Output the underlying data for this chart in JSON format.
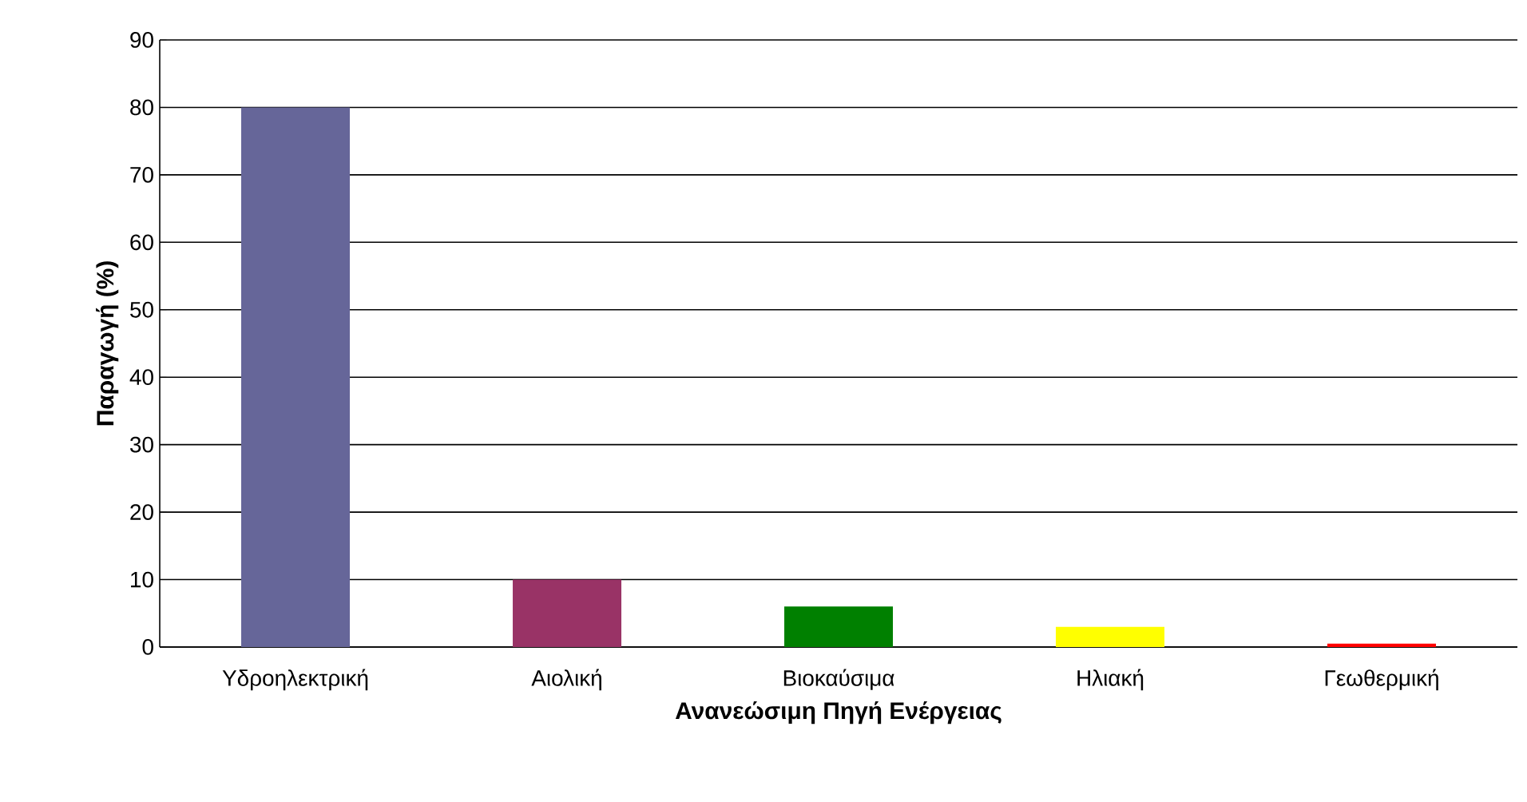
{
  "chart_data": {
    "type": "bar",
    "xlabel": "Ανανεώσιμη Πηγή Ενέργειας",
    "ylabel": "Παραγωγή (%)",
    "categories": [
      "Υδροηλεκτρική",
      "Αιολική",
      "Βιοκαύσιμα",
      "Ηλιακή",
      "Γεωθερμική"
    ],
    "values": [
      80,
      10,
      6,
      3,
      0.5
    ],
    "colors": [
      "#666699",
      "#993366",
      "#008000",
      "#ffff00",
      "#ff0000"
    ],
    "ylim": [
      0,
      90
    ],
    "yticks": [
      0,
      10,
      20,
      30,
      40,
      50,
      60,
      70,
      80,
      90
    ],
    "grid": "y"
  }
}
